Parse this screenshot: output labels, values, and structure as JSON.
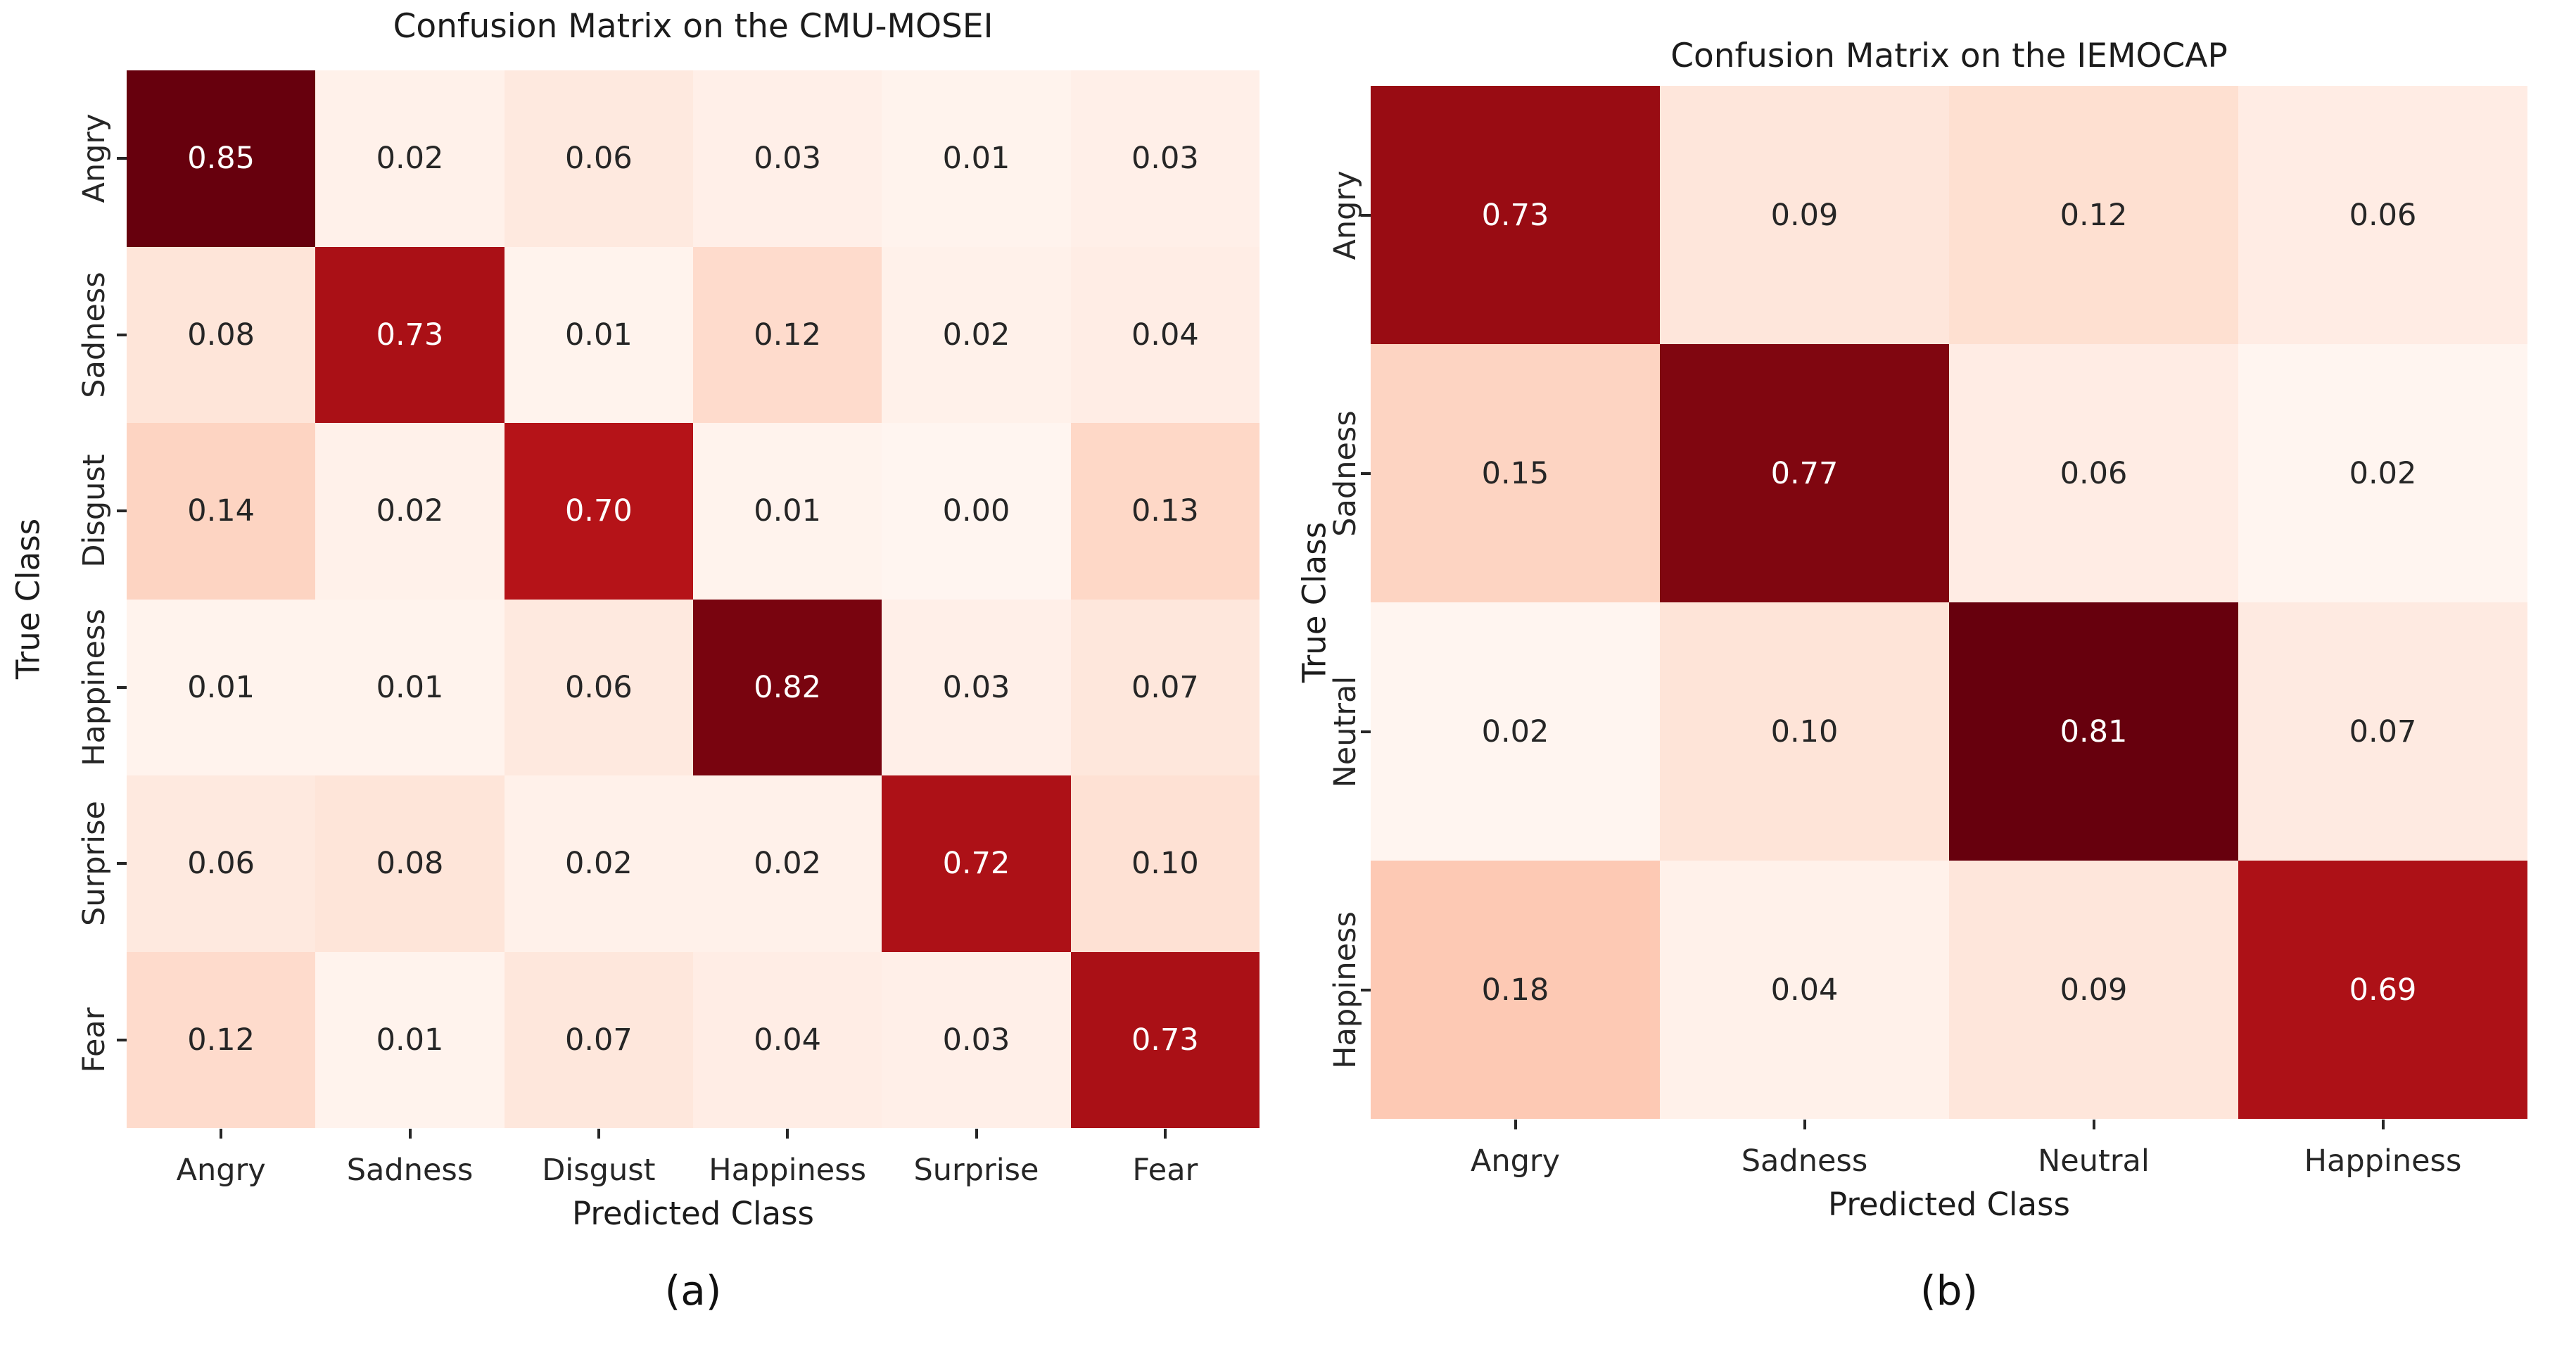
{
  "colors": {
    "background": "#ffffff",
    "axis_text": "#262626",
    "title_text": "#1c1c1c",
    "annot_dark": "#262626",
    "annot_light": "#ffffff",
    "reds_colormap": {
      "positions": [
        0,
        0.125,
        0.25,
        0.375,
        0.5,
        0.625,
        0.75,
        0.875,
        1.0
      ],
      "hex": [
        "#fff5f0",
        "#fee0d2",
        "#fcbba1",
        "#fc9272",
        "#fb6a4a",
        "#ef3b2c",
        "#cb181d",
        "#a50f15",
        "#67000d"
      ]
    }
  },
  "chart_data": [
    {
      "type": "heatmap",
      "title": "Confusion Matrix on the CMU-MOSEI",
      "xlabel": "Predicted Class",
      "ylabel": "True Class",
      "caption": "(a)",
      "x_tick_labels": [
        "Angry",
        "Sadness",
        "Disgust",
        "Happiness",
        "Surprise",
        "Fear"
      ],
      "y_tick_labels": [
        "Angry",
        "Sadness",
        "Disgust",
        "Happiness",
        "Surprise",
        "Fear"
      ],
      "values": [
        [
          0.85,
          0.02,
          0.06,
          0.03,
          0.01,
          0.03
        ],
        [
          0.08,
          0.73,
          0.01,
          0.12,
          0.02,
          0.04
        ],
        [
          0.14,
          0.02,
          0.7,
          0.01,
          0.0,
          0.13
        ],
        [
          0.01,
          0.01,
          0.06,
          0.82,
          0.03,
          0.07
        ],
        [
          0.06,
          0.08,
          0.02,
          0.02,
          0.72,
          0.1
        ],
        [
          0.12,
          0.01,
          0.07,
          0.04,
          0.03,
          0.73
        ]
      ],
      "colormap": "Reds",
      "value_decimals": 2,
      "grid": false,
      "legend": "none"
    },
    {
      "type": "heatmap",
      "title": "Confusion Matrix on the IEMOCAP",
      "xlabel": "Predicted Class",
      "ylabel": "True Class",
      "caption": "(b)",
      "x_tick_labels": [
        "Angry",
        "Sadness",
        "Neutral",
        "Happiness"
      ],
      "y_tick_labels": [
        "Angry",
        "Sadness",
        "Neutral",
        "Happiness"
      ],
      "values": [
        [
          0.73,
          0.09,
          0.12,
          0.06
        ],
        [
          0.15,
          0.77,
          0.06,
          0.02
        ],
        [
          0.02,
          0.1,
          0.81,
          0.07
        ],
        [
          0.18,
          0.04,
          0.09,
          0.69
        ]
      ],
      "colormap": "Reds",
      "value_decimals": 2,
      "grid": false,
      "legend": "none"
    }
  ]
}
